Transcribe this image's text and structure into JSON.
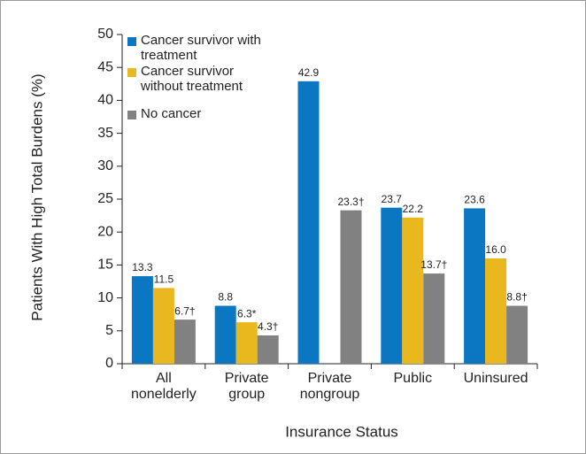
{
  "chart_data": {
    "type": "bar",
    "x_label": "Insurance Status",
    "y_label": "Patients With High Total Burdens (%)",
    "categories": [
      "All nonelderly",
      "Private group",
      "Private nongroup",
      "Public",
      "Uninsured"
    ],
    "series": [
      {
        "name": "Cancer survivor with treatment",
        "color": "#0b77c2",
        "values": [
          13.3,
          8.8,
          42.9,
          23.7,
          23.6
        ],
        "value_labels": [
          "13.3",
          "8.8",
          "42.9",
          "23.7",
          "23.6"
        ]
      },
      {
        "name": "Cancer survivor without treatment",
        "color": "#e9b71e",
        "values": [
          11.5,
          6.3,
          null,
          22.2,
          16.0
        ],
        "value_labels": [
          "11.5",
          "6.3*",
          null,
          "22.2",
          "16.0"
        ]
      },
      {
        "name": "No cancer",
        "color": "#818181",
        "values": [
          6.7,
          4.3,
          23.3,
          13.7,
          8.8
        ],
        "value_labels": [
          "6.7†",
          "4.3†",
          "23.3†",
          "13.7†",
          "8.8†"
        ]
      }
    ],
    "ylim": [
      0,
      50
    ],
    "yticks": [
      0,
      5,
      10,
      15,
      20,
      25,
      30,
      35,
      40,
      45,
      50
    ],
    "grid": false,
    "legend": "upper left"
  }
}
